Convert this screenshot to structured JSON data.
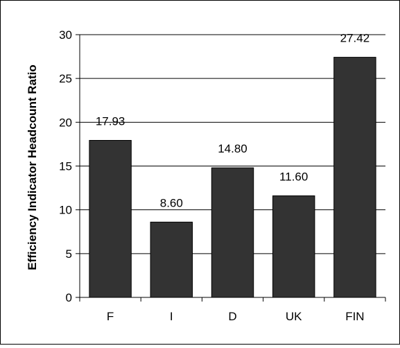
{
  "chart_data": {
    "type": "bar",
    "title": "",
    "xlabel": "",
    "ylabel": "Efficiency Indicator Headcount Ratio",
    "categories": [
      "F",
      "I",
      "D",
      "UK",
      "FIN"
    ],
    "values": [
      17.93,
      8.6,
      14.8,
      11.6,
      27.42
    ],
    "data_labels": [
      "17.93",
      "8.60",
      "14.80",
      "11.60",
      "27.42"
    ],
    "yticks": [
      0,
      5,
      10,
      15,
      20,
      25,
      30
    ],
    "ylim": [
      0,
      30
    ],
    "grid": true,
    "legend": "none",
    "colors": {
      "bar": "#333333",
      "grid": "#000000",
      "frame": "#000000"
    }
  }
}
